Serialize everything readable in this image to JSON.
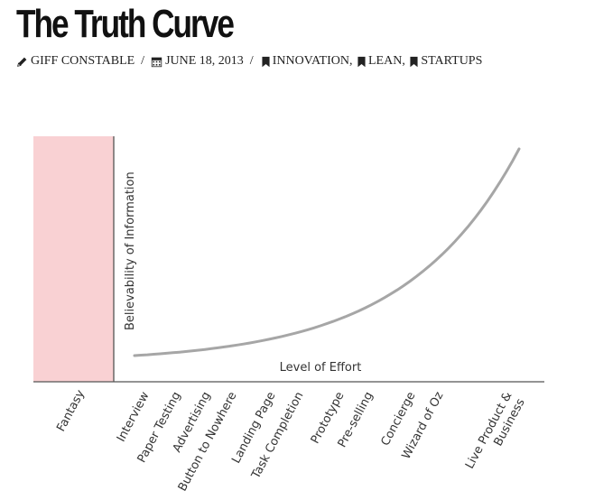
{
  "post": {
    "title": "The Truth Curve",
    "author": "GIFF CONSTABLE",
    "separator": "/",
    "date": "JUNE 18, 2013",
    "categories": [
      "INNOVATION",
      "LEAN",
      "STARTUPS"
    ],
    "category_separator": ",",
    "icons": {
      "author": "pencil-icon",
      "date": "calendar-icon",
      "category": "bookmark-icon"
    }
  },
  "chart_data": {
    "type": "line",
    "title": "",
    "xlabel": "Level of Effort",
    "ylabel": "Believability of Information",
    "zone": {
      "label": "Fantasy",
      "color": "#f9d1d3",
      "label_color": "#e8444c"
    },
    "categories": [
      "Interview",
      "Paper Testing",
      "Advertising",
      "Button to Nowhere",
      "Landing Page",
      "Task Completion",
      "Prototype",
      "Pre-selling",
      "Concierge",
      "Wizard of Oz",
      "Live Product & Business"
    ],
    "curve": {
      "shape": "exponential",
      "color": "#a6a6a6",
      "axis_color": "#555555"
    }
  }
}
